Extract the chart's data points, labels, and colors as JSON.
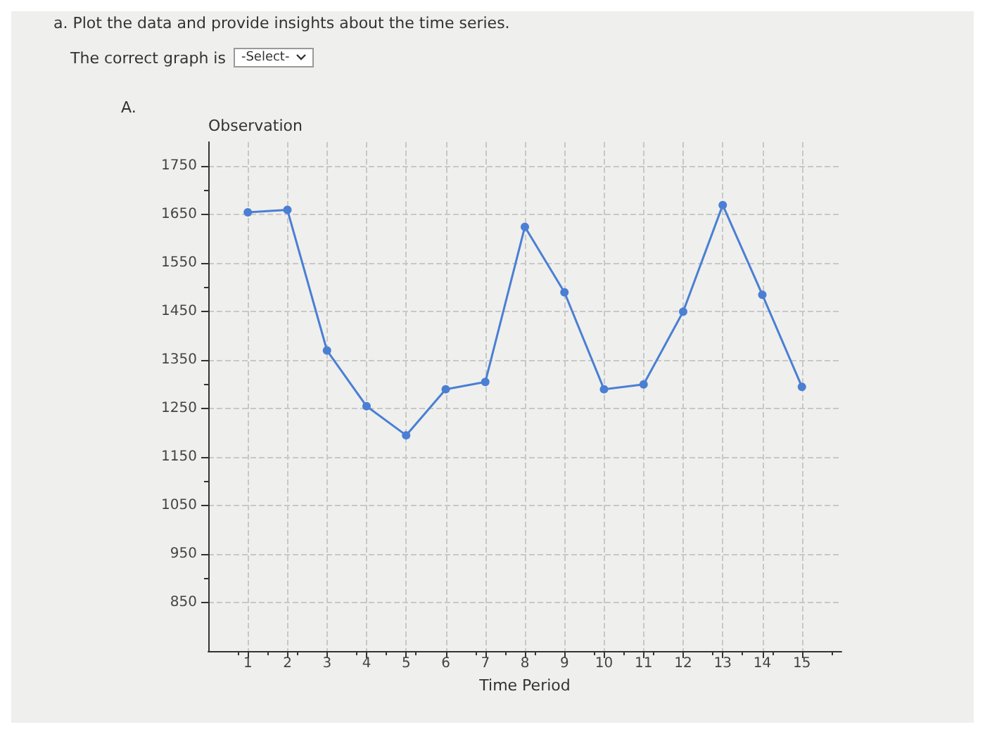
{
  "chart_data": {
    "type": "line",
    "title": "a. Plot the data and provide insights about the time series.",
    "subtitle": "The correct graph is",
    "annotations": [
      "-Select-",
      "A."
    ],
    "xlabel": "Time Period",
    "ylabel": "Observation",
    "x": [
      1,
      2,
      3,
      4,
      5,
      6,
      7,
      8,
      9,
      10,
      11,
      12,
      13,
      14,
      15
    ],
    "series": [
      {
        "color": "#4a7fd4",
        "values": [
          1655,
          1660,
          1370,
          1255,
          1195,
          1290,
          1305,
          1625,
          1490,
          1290,
          1300,
          1450,
          1670,
          1485,
          1295
        ]
      }
    ],
    "xlim": [
      0,
      16
    ],
    "ylim": [
      750,
      1800
    ],
    "xticks": [
      1,
      2,
      3,
      4,
      5,
      6,
      7,
      8,
      9,
      10,
      11,
      12,
      13,
      14,
      15
    ],
    "yticks": [
      850,
      950,
      1050,
      1150,
      1250,
      1350,
      1450,
      1550,
      1650,
      1750
    ],
    "grid": true,
    "marker": "circle"
  }
}
